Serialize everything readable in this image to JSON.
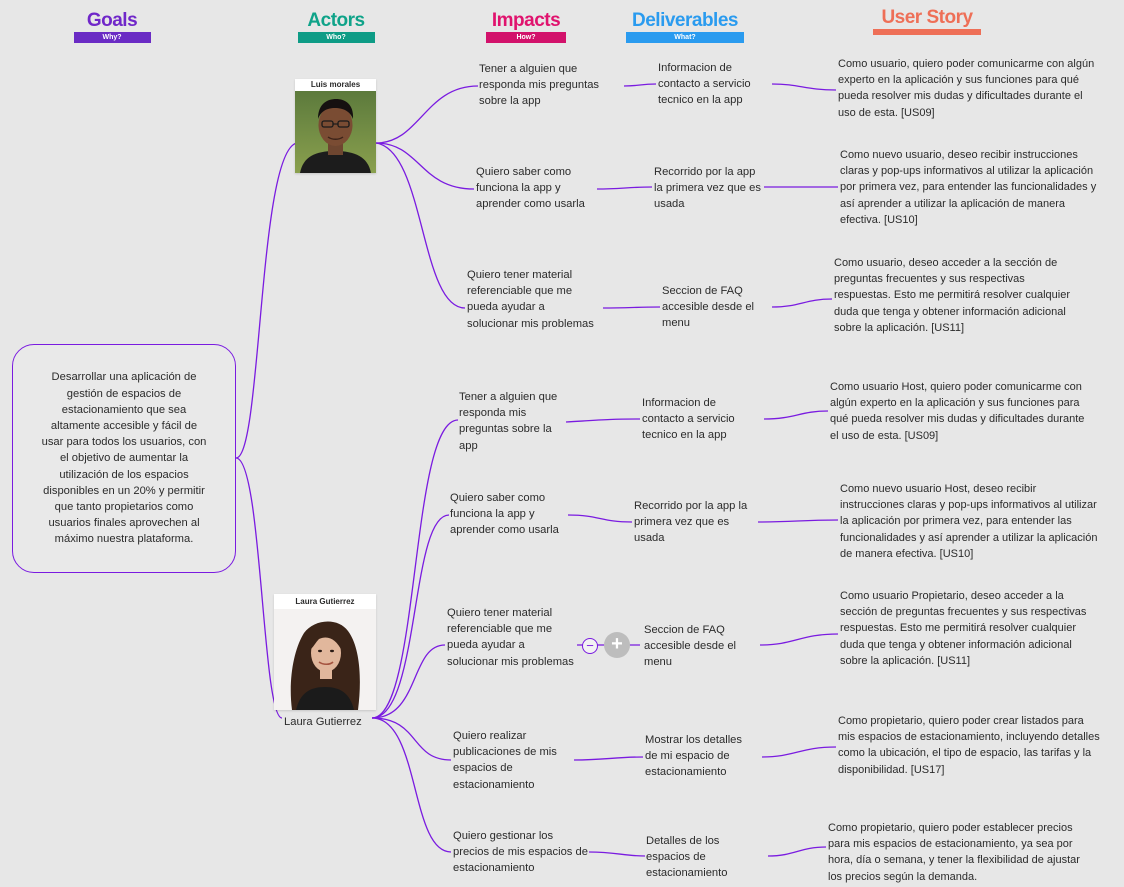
{
  "headers": {
    "goals": {
      "title": "Goals",
      "subtitle": "Why?",
      "color": "#7027c9",
      "bar": "#6a2bc4"
    },
    "actors": {
      "title": "Actors",
      "subtitle": "Who?",
      "color": "#0fa389",
      "bar": "#0e9c86"
    },
    "impacts": {
      "title": "Impacts",
      "subtitle": "How?",
      "color": "#e0136e",
      "bar": "#d2126b"
    },
    "deliverables": {
      "title": "Deliverables",
      "subtitle": "What?",
      "color": "#2a9bef",
      "bar": "#2a9bef"
    },
    "user_story": {
      "title": "User Story",
      "color": "#ee6f57",
      "bar": "#ee6f57"
    }
  },
  "goal": "Desarrollar una aplicación de gestión de espacios de estacionamiento que sea altamente accesible y fácil de usar para todos los usuarios, con el objetivo de aumentar la utilización de los espacios disponibles en un 20% y permitir que tanto propietarios como usuarios finales aprovechen al máximo nuestra plataforma.",
  "actors": [
    {
      "photo_label": "Luis morales"
    },
    {
      "photo_label": "Laura Gutierrez",
      "caption": "Laura Gutierrez"
    }
  ],
  "rows": [
    {
      "impact": "Tener a alguien que responda mis preguntas sobre la app",
      "deliverable": "Informacion de contacto a servicio tecnico en la app",
      "story": "Como usuario, quiero poder comunicarme con algún experto en la aplicación y sus funciones para qué pueda resolver mis dudas y dificultades durante el uso de esta. [US09]"
    },
    {
      "impact": "Quiero saber como funciona la app y aprender como usarla",
      "deliverable": "Recorrido por la app la primera vez que es usada",
      "story": "Como nuevo usuario, deseo recibir instrucciones claras y pop-ups informativos al utilizar la aplicación por primera vez, para entender las funcionalidades y así aprender a utilizar la aplicación de manera efectiva. [US10]"
    },
    {
      "impact": "Quiero tener material referenciable que me pueda ayudar a solucionar mis problemas",
      "deliverable": "Seccion de FAQ accesible desde el menu",
      "story": "Como usuario, deseo acceder a la sección de preguntas frecuentes y sus respectivas respuestas. Esto me permitirá resolver cualquier duda que tenga y obtener información adicional sobre la aplicación. [US11]"
    },
    {
      "impact": "Tener a alguien que responda mis preguntas sobre la app",
      "deliverable": "Informacion de contacto a servicio tecnico en la app",
      "story": "Como usuario Host, quiero poder comunicarme con algún experto en la aplicación y sus funciones para qué pueda resolver mis dudas y dificultades durante el uso de esta. [US09]"
    },
    {
      "impact": "Quiero saber como funciona la app y aprender como usarla",
      "deliverable": "Recorrido por la app la primera vez que es usada",
      "story": "Como nuevo usuario Host, deseo recibir instrucciones claras y pop-ups informativos al utilizar la aplicación por primera vez, para entender las funcionalidades y así aprender a utilizar la aplicación de manera efectiva. [US10]"
    },
    {
      "impact": "Quiero tener material referenciable que me pueda ayudar a solucionar mis problemas",
      "deliverable": "Seccion de FAQ accesible desde el menu",
      "story": "Como usuario Propietario, deseo acceder a la sección de preguntas frecuentes y sus respectivas respuestas. Esto me permitirá resolver cualquier duda que tenga y obtener información adicional sobre la aplicación. [US11]"
    },
    {
      "impact": "Quiero realizar publicaciones de mis espacios de estacionamiento",
      "deliverable": "Mostrar los detalles de mi espacio de estacionamiento",
      "story": "Como propietario, quiero poder crear listados para mis espacios de estacionamiento, incluyendo detalles como la ubicación, el tipo de espacio, las tarifas y la disponibilidad. [US17]"
    },
    {
      "impact": "Quiero gestionar los precios de mis espacios de estacionamiento",
      "deliverable": "Detalles de los espacios de estacionamiento",
      "story": "Como propietario, quiero poder establecer precios para mis espacios de estacionamiento, ya sea por hora, día o semana, y tener la flexibilidad de ajustar los precios según la demanda."
    }
  ],
  "controls": {
    "collapse": "−",
    "add": "+"
  },
  "link_color": "#7a1be0"
}
